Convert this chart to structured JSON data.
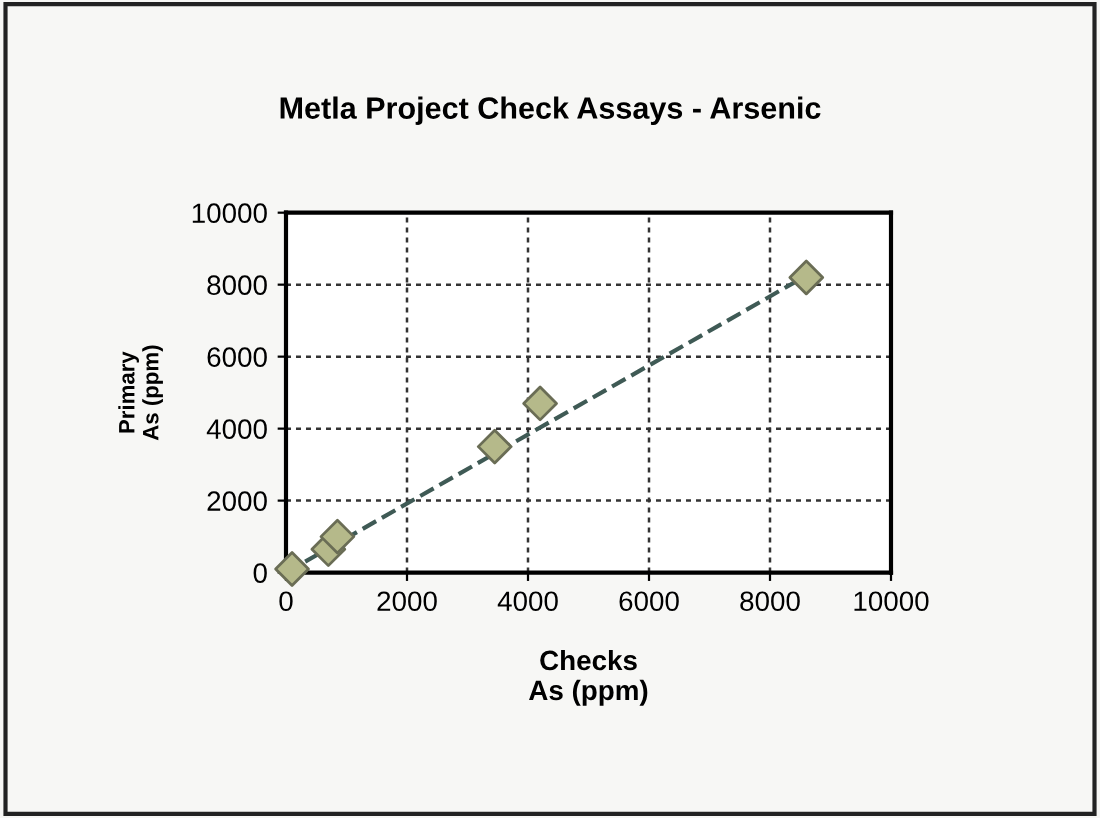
{
  "chart_data": {
    "type": "scatter",
    "title": "Metla Project Check Assays - Arsenic",
    "xlabel": "Checks\nAs (ppm)",
    "ylabel": "Primary\nAs (ppm)",
    "series": [
      {
        "color": "#b5b98a",
        "marker": "diamond",
        "x": [
          100,
          300,
          450,
          600,
          700,
          850,
          3450,
          4200,
          8600
        ],
        "values": [
          100,
          null,
          null,
          null,
          650,
          1000,
          3500,
          4700,
          8200
        ]
      },
      {
        "type": "line",
        "color": "#3f5a55",
        "line_style": "dashed",
        "marker": "none",
        "x": [
          0,
          8600
        ],
        "values": [
          0,
          8250
        ]
      }
    ],
    "xlim": [
      0,
      10000
    ],
    "ylim": [
      0,
      10000
    ],
    "xticks": [
      0,
      2000,
      4000,
      6000,
      8000,
      10000
    ],
    "yticks": [
      0,
      2000,
      4000,
      6000,
      8000,
      10000
    ],
    "grid": true,
    "legend": false
  }
}
